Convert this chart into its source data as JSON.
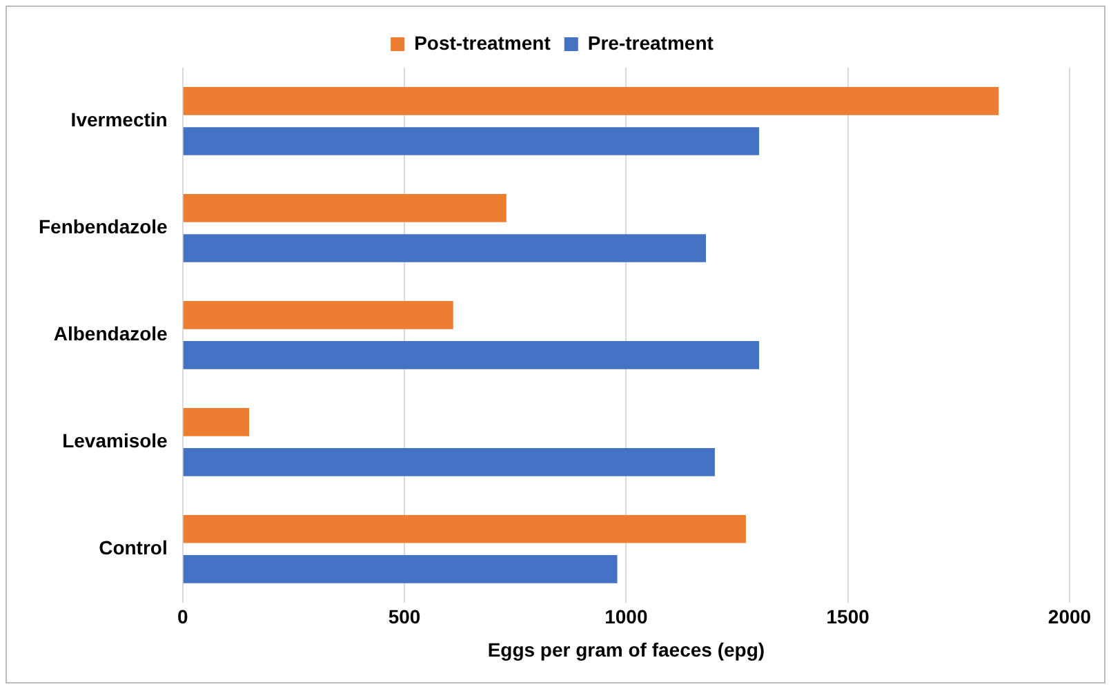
{
  "chart_data": {
    "type": "bar",
    "orientation": "horizontal",
    "xlabel": "Eggs per gram of faeces (epg)",
    "categories": [
      "Ivermectin",
      "Fenbendazole",
      "Albendazole",
      "Levamisole",
      "Control"
    ],
    "series": [
      {
        "name": "Post-treatment",
        "color": "#ed7d31",
        "values": [
          1840,
          730,
          610,
          150,
          1270
        ]
      },
      {
        "name": "Pre-treatment",
        "color": "#4472c4",
        "values": [
          1300,
          1180,
          1300,
          1200,
          980
        ]
      }
    ],
    "xlim": [
      0,
      2000
    ],
    "xticks": [
      0,
      500,
      1000,
      1500,
      2000
    ],
    "grid": "x",
    "legend": "top"
  }
}
